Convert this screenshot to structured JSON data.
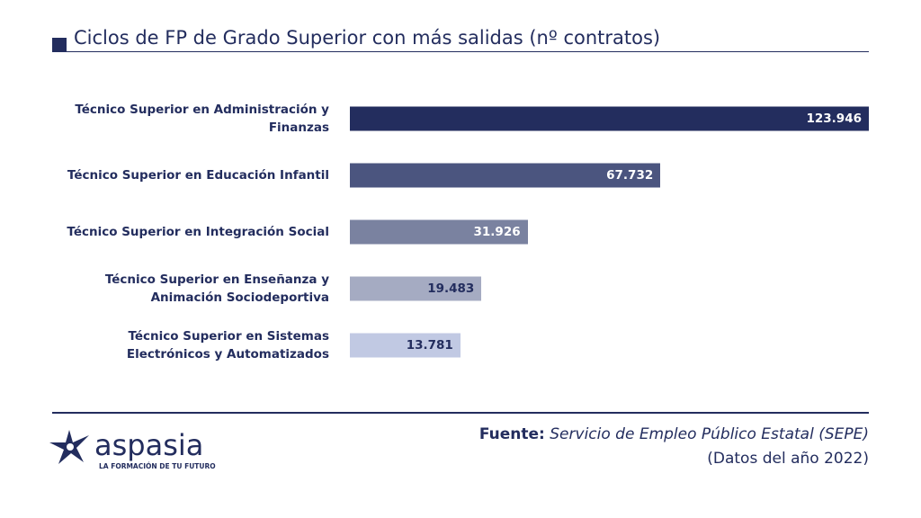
{
  "logo": {
    "name": "aspasia",
    "tagline": "LA FORMACIÓN DE TU FUTURO"
  },
  "footer": {
    "source_label": "Fuente:",
    "source_text": "Servicio de Empleo Público Estatal (SEPE)",
    "note": "(Datos del año 2022)"
  },
  "chart_data": {
    "type": "bar",
    "orientation": "horizontal",
    "title": "Ciclos de FP de Grado Superior con más salidas (nº contratos)",
    "xlabel": "",
    "ylabel": "",
    "grid": false,
    "categories": [
      "Técnico Superior en Administración y Finanzas",
      "Técnico Superior en Educación Infantil",
      "Técnico Superior en Integración Social",
      "Técnico Superior en Enseñanza y Animación Sociodeportiva",
      "Técnico Superior en Sistemas Electrónicos y Automatizados"
    ],
    "values": [
      123946,
      67732,
      31926,
      19483,
      13781
    ],
    "labels": [
      "123.946",
      "67.732",
      "31.926",
      "19.483",
      "13.781"
    ],
    "colors": [
      "#232d5e",
      "#4b557f",
      "#7a82a0",
      "#a5abc2",
      "#c1c9e3"
    ],
    "label_colors": [
      "#ffffff",
      "#ffffff",
      "#ffffff",
      "#232d5e",
      "#232d5e"
    ]
  }
}
